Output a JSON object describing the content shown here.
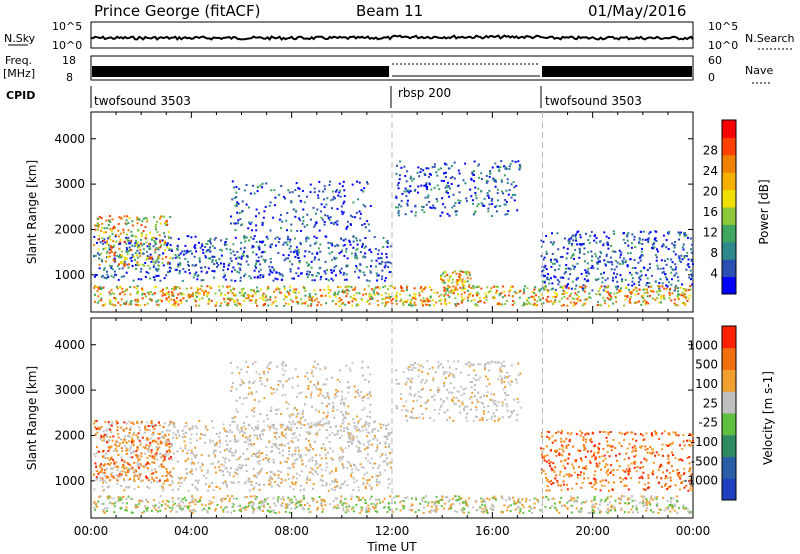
{
  "header": {
    "station": "Prince George (fitACF)",
    "beam": "Beam 11",
    "date": "01/May/2016"
  },
  "top_panels": {
    "nsky_label": "N.Sky",
    "nsearch_label": "N.Search",
    "freq_label_1": "Freq.",
    "freq_label_2": "[MHz]",
    "nave_label": "Nave",
    "cpid_label": "CPID",
    "noise_ticks": [
      "10^5",
      "10^0"
    ],
    "freq_ticks": [
      "18",
      "8"
    ],
    "nave_ticks": [
      "60",
      "0"
    ],
    "cpid_segments": [
      {
        "label": "twofsound 3503",
        "start_h": 0
      },
      {
        "label": "rbsp 200",
        "start_h": 12
      },
      {
        "label": "twofsound 3503",
        "start_h": 18
      }
    ]
  },
  "chart_data": [
    {
      "type": "heatmap",
      "ylabel": "Slant Range [km]",
      "colorbar_label": "Power [dB]",
      "colorbar_ticks": [
        4,
        8,
        12,
        16,
        20,
        24,
        28
      ],
      "colorbar_colors": [
        "#0000ff",
        "#2a4fb2",
        "#2e8a8a",
        "#3fa55f",
        "#8cc83a",
        "#f0e000",
        "#f5b000",
        "#f08000",
        "#ff4000",
        "#ff0000"
      ],
      "ylim": [
        180,
        4590
      ],
      "yticks": [
        1000,
        2000,
        3000,
        4000
      ],
      "xlim": [
        0,
        24
      ],
      "markers_h": [
        12,
        18
      ]
    },
    {
      "type": "heatmap",
      "ylabel": "Slant Range [km]",
      "xlabel": "Time UT",
      "colorbar_label": "Velocity [m s-1]",
      "colorbar_ticks": [
        1000,
        500,
        100,
        25,
        -25,
        -100,
        -500,
        -1000
      ],
      "colorbar_colors": [
        "#2040c0",
        "#2a5fa8",
        "#2e8a60",
        "#5fc040",
        "#c0c0c0",
        "#f0a030",
        "#f07010",
        "#ff2000"
      ],
      "ylim": [
        180,
        4590
      ],
      "yticks": [
        1000,
        2000,
        3000,
        4000
      ],
      "xlim": [
        0,
        24
      ],
      "xticks": [
        "00:00",
        "04:00",
        "08:00",
        "12:00",
        "16:00",
        "20:00",
        "00:00"
      ],
      "markers_h": [
        12,
        18
      ]
    }
  ]
}
